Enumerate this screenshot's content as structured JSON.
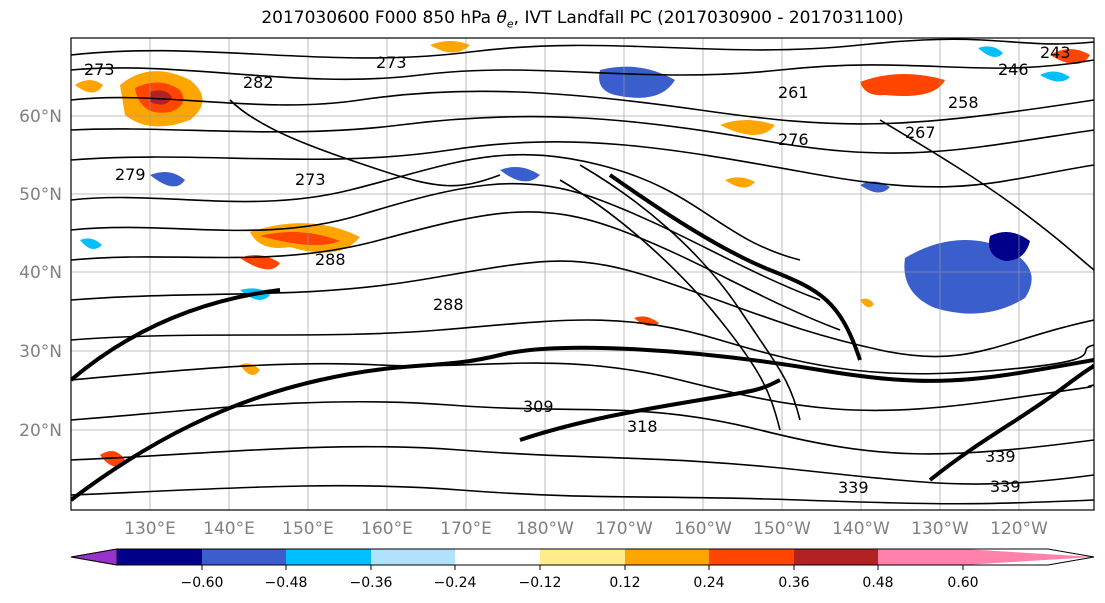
{
  "title_prefix": "2017030600 F000 850 hPa ",
  "title_symbol": "θ",
  "title_symbol_sub": "e",
  "title_suffix": ", IVT Landfall PC (2017030900 - 2017031100)",
  "lat_labels": [
    "60°N",
    "50°N",
    "40°N",
    "30°N",
    "20°N"
  ],
  "lon_labels": [
    "130°E",
    "140°E",
    "150°E",
    "160°E",
    "170°E",
    "180°W",
    "170°W",
    "160°W",
    "150°W",
    "140°W",
    "130°W",
    "120°W"
  ],
  "colorbar": {
    "colors": [
      "#9932cc",
      "#00008b",
      "#3a5fcd",
      "#00bfff",
      "#b0e2ff",
      "#ffffff",
      "#ffec8b",
      "#ffa500",
      "#ff4500",
      "#b22222",
      "#ff82ab"
    ],
    "tick_labels": [
      "−0.60",
      "−0.48",
      "−0.36",
      "−0.24",
      "−0.12",
      "0.12",
      "0.24",
      "0.36",
      "0.48",
      "0.60"
    ]
  },
  "contour_labels": [
    "273",
    "282",
    "279",
    "273",
    "288",
    "288",
    "273",
    "261",
    "276",
    "267",
    "246",
    "243",
    "258",
    "339",
    "339",
    "339",
    "309",
    "318"
  ]
}
